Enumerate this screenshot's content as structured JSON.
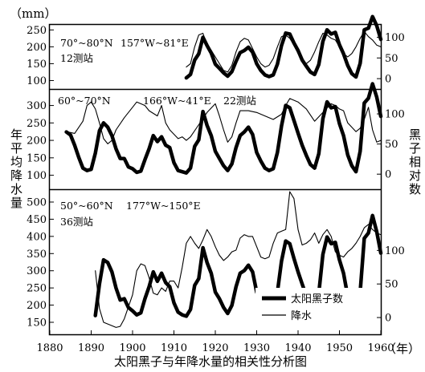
{
  "figure": {
    "unit_label": "（mm）",
    "left_axis_label": "年平均降水量",
    "right_axis_label": "黑子相对数",
    "x_unit": "（年）",
    "caption": "太阳黑子与年降水量的相关性分析图"
  },
  "legend": {
    "sunspot_label": "太阳黑子数",
    "rain_label": "降水"
  },
  "panels": [
    {
      "lat": "70°~80°N",
      "lon": "157°W~81°E",
      "stations": "12测站"
    },
    {
      "lat": "60°~70°N",
      "lon": "166°W~41°E",
      "stations": "22测站"
    },
    {
      "lat": "50°~60°N",
      "lon": "177°W~150°E",
      "stations": "36测站"
    }
  ],
  "chart_data": [
    {
      "type": "line",
      "title": "70°~80°N 157°W~81°E 12测站",
      "xlabel": "（年）",
      "ylabel": "年平均降水量 (mm)",
      "y2label": "黑子相对数",
      "xlim": [
        1880,
        1960
      ],
      "ylim": [
        75,
        265
      ],
      "yticks": [
        100,
        150,
        200,
        250
      ],
      "y2lim": [
        -25,
        130
      ],
      "y2ticks": [
        0,
        50,
        100
      ],
      "xticks": [
        1880,
        1890,
        1900,
        1910,
        1920,
        1930,
        1940,
        1950,
        1960
      ],
      "grid": false,
      "series": [
        {
          "name": "太阳黑子数",
          "axis": "right",
          "style": "thick",
          "x": [
            1913,
            1914,
            1915,
            1916,
            1917,
            1918,
            1919,
            1920,
            1921,
            1922,
            1923,
            1924,
            1925,
            1926,
            1927,
            1928,
            1929,
            1930,
            1931,
            1932,
            1933,
            1934,
            1935,
            1936,
            1937,
            1938,
            1939,
            1940,
            1941,
            1942,
            1943,
            1944,
            1945,
            1946,
            1947,
            1948,
            1949,
            1950,
            1951,
            1952,
            1953,
            1954,
            1955,
            1956,
            1957,
            1958,
            1959,
            1960
          ],
          "y": [
            2,
            10,
            45,
            60,
            100,
            80,
            62,
            35,
            25,
            14,
            6,
            17,
            42,
            63,
            68,
            76,
            64,
            36,
            20,
            9,
            5,
            9,
            35,
            80,
            110,
            108,
            86,
            68,
            45,
            30,
            16,
            10,
            34,
            90,
            118,
            108,
            112,
            82,
            60,
            32,
            12,
            4,
            37,
            118,
            122,
            150,
            128,
            95
          ]
        },
        {
          "name": "降水",
          "axis": "left",
          "style": "thin",
          "x": [
            1913,
            1914,
            1915,
            1916,
            1917,
            1918,
            1919,
            1920,
            1921,
            1922,
            1923,
            1924,
            1925,
            1926,
            1927,
            1928,
            1929,
            1930,
            1931,
            1932,
            1933,
            1934,
            1935,
            1936,
            1937,
            1938,
            1939,
            1940,
            1941,
            1942,
            1943,
            1944,
            1945,
            1946,
            1947,
            1948,
            1949,
            1950,
            1951,
            1952,
            1953,
            1954,
            1955,
            1956,
            1957,
            1958,
            1959,
            1960
          ],
          "y": [
            140,
            150,
            200,
            235,
            240,
            205,
            190,
            170,
            150,
            130,
            125,
            145,
            185,
            215,
            225,
            220,
            195,
            170,
            150,
            140,
            145,
            165,
            200,
            230,
            235,
            225,
            205,
            180,
            160,
            150,
            160,
            185,
            215,
            240,
            235,
            225,
            220,
            200,
            180,
            170,
            180,
            200,
            225,
            245,
            230,
            220,
            205,
            200
          ]
        }
      ]
    },
    {
      "type": "line",
      "title": "60°~70°N 166°W~41°E 22测站",
      "xlabel": "（年）",
      "ylabel": "年平均降水量 (mm)",
      "y2label": "黑子相对数",
      "xlim": [
        1880,
        1960
      ],
      "ylim": [
        60,
        345
      ],
      "yticks": [
        100,
        150,
        200,
        250,
        300
      ],
      "y2lim": [
        -25,
        140
      ],
      "y2ticks": [
        0,
        50,
        100
      ],
      "xticks": [
        1880,
        1890,
        1900,
        1910,
        1920,
        1930,
        1940,
        1950,
        1960
      ],
      "grid": false,
      "series": [
        {
          "name": "太阳黑子数",
          "axis": "right",
          "style": "thick",
          "x": [
            1884,
            1885,
            1886,
            1887,
            1888,
            1889,
            1890,
            1891,
            1892,
            1893,
            1894,
            1895,
            1896,
            1897,
            1898,
            1899,
            1900,
            1901,
            1902,
            1903,
            1904,
            1905,
            1906,
            1907,
            1908,
            1909,
            1910,
            1911,
            1912,
            1913,
            1914,
            1915,
            1916,
            1917,
            1918,
            1919,
            1920,
            1921,
            1922,
            1923,
            1924,
            1925,
            1926,
            1927,
            1928,
            1929,
            1930,
            1931,
            1932,
            1933,
            1934,
            1935,
            1936,
            1937,
            1938,
            1939,
            1940,
            1941,
            1942,
            1943,
            1944,
            1945,
            1946,
            1947,
            1948,
            1949,
            1950,
            1951,
            1952,
            1953,
            1954,
            1955,
            1956,
            1957,
            1958,
            1959,
            1960
          ],
          "y": [
            70,
            65,
            48,
            28,
            10,
            6,
            8,
            35,
            72,
            85,
            78,
            64,
            42,
            26,
            26,
            12,
            9,
            3,
            5,
            24,
            42,
            64,
            54,
            62,
            48,
            44,
            19,
            6,
            4,
            2,
            10,
            46,
            57,
            104,
            81,
            64,
            38,
            26,
            14,
            6,
            17,
            44,
            64,
            70,
            78,
            66,
            36,
            22,
            10,
            6,
            9,
            36,
            80,
            114,
            110,
            89,
            68,
            48,
            31,
            16,
            10,
            34,
            92,
            120,
            110,
            112,
            84,
            64,
            32,
            14,
            4,
            38,
            118,
            126,
            150,
            128,
            96
          ]
        },
        {
          "name": "降水",
          "axis": "left",
          "style": "thin",
          "x": [
            1884,
            1886,
            1888,
            1889,
            1890,
            1891,
            1892,
            1893,
            1894,
            1895,
            1896,
            1898,
            1900,
            1901,
            1902,
            1903,
            1904,
            1906,
            1907,
            1908,
            1909,
            1911,
            1912,
            1913,
            1914,
            1916,
            1918,
            1920,
            1921,
            1922,
            1923,
            1924,
            1925,
            1926,
            1928,
            1930,
            1932,
            1934,
            1936,
            1937,
            1938,
            1940,
            1942,
            1944,
            1946,
            1948,
            1949,
            1950,
            1951,
            1952,
            1954,
            1955,
            1956,
            1957,
            1958,
            1959,
            1960
          ],
          "y": [
            225,
            220,
            255,
            300,
            310,
            290,
            250,
            205,
            190,
            200,
            230,
            265,
            295,
            310,
            305,
            300,
            285,
            270,
            300,
            250,
            230,
            205,
            210,
            200,
            210,
            245,
            280,
            305,
            270,
            230,
            195,
            210,
            250,
            285,
            285,
            280,
            270,
            260,
            275,
            300,
            320,
            310,
            290,
            255,
            280,
            305,
            300,
            290,
            285,
            250,
            225,
            235,
            260,
            295,
            230,
            195,
            200
          ]
        }
      ]
    },
    {
      "type": "line",
      "title": "50°~60°N 177°W~150°E 36测站",
      "xlabel": "（年）",
      "ylabel": "年平均降水量 (mm)",
      "y2label": "黑子相对数",
      "xlim": [
        1880,
        1960
      ],
      "ylim": [
        115,
        535
      ],
      "yticks": [
        150,
        200,
        250,
        300,
        350,
        400,
        450,
        500
      ],
      "y2lim": [
        -25,
        190
      ],
      "y2ticks": [
        0,
        50,
        100
      ],
      "xticks": [
        1880,
        1890,
        1900,
        1910,
        1920,
        1930,
        1940,
        1950,
        1960
      ],
      "grid": false,
      "series": [
        {
          "name": "太阳黑子数",
          "axis": "right",
          "style": "thick",
          "x": [
            1891,
            1892,
            1893,
            1894,
            1895,
            1896,
            1897,
            1898,
            1899,
            1900,
            1901,
            1902,
            1903,
            1904,
            1905,
            1906,
            1907,
            1908,
            1909,
            1910,
            1911,
            1912,
            1913,
            1914,
            1915,
            1916,
            1917,
            1918,
            1919,
            1920,
            1921,
            1922,
            1923,
            1924,
            1925,
            1926,
            1927,
            1928,
            1929,
            1930,
            1931,
            1932,
            1933,
            1934,
            1935,
            1936,
            1937,
            1938,
            1939,
            1940,
            1941,
            1942,
            1943,
            1944,
            1945,
            1946,
            1947,
            1948,
            1949,
            1950,
            1951,
            1952,
            1953,
            1954,
            1955,
            1956,
            1957,
            1958,
            1959,
            1960
          ],
          "y": [
            3,
            50,
            86,
            82,
            68,
            44,
            26,
            28,
            15,
            10,
            4,
            7,
            28,
            46,
            68,
            54,
            66,
            52,
            46,
            22,
            8,
            4,
            2,
            12,
            48,
            58,
            104,
            82,
            66,
            38,
            28,
            15,
            6,
            18,
            46,
            66,
            70,
            78,
            68,
            38,
            24,
            12,
            6,
            10,
            38,
            84,
            114,
            110,
            88,
            68,
            50,
            32,
            18,
            10,
            36,
            94,
            120,
            110,
            112,
            86,
            66,
            32,
            16,
            4,
            38,
            118,
            126,
            152,
            128,
            96
          ]
        },
        {
          "name": "降水",
          "axis": "left",
          "style": "thin",
          "x": [
            1891,
            1892,
            1893,
            1894,
            1895,
            1896,
            1897,
            1898,
            1900,
            1901,
            1902,
            1903,
            1904,
            1905,
            1906,
            1907,
            1908,
            1909,
            1910,
            1911,
            1912,
            1913,
            1914,
            1915,
            1916,
            1917,
            1918,
            1919,
            1920,
            1921,
            1922,
            1923,
            1924,
            1925,
            1926,
            1927,
            1928,
            1929,
            1930,
            1931,
            1932,
            1933,
            1934,
            1935,
            1936,
            1937,
            1938,
            1939,
            1940,
            1941,
            1942,
            1943,
            1944,
            1945,
            1946,
            1947,
            1948,
            1949,
            1950,
            1951,
            1952,
            1953,
            1954,
            1955,
            1956,
            1957,
            1958,
            1959,
            1960
          ],
          "y": [
            300,
            190,
            150,
            145,
            140,
            135,
            138,
            160,
            230,
            300,
            320,
            315,
            280,
            235,
            230,
            250,
            240,
            270,
            270,
            250,
            310,
            380,
            400,
            380,
            365,
            390,
            420,
            400,
            370,
            345,
            330,
            340,
            355,
            360,
            395,
            405,
            400,
            400,
            370,
            340,
            335,
            340,
            380,
            410,
            415,
            420,
            530,
            510,
            420,
            375,
            380,
            390,
            410,
            380,
            405,
            420,
            400,
            355,
            345,
            340,
            355,
            365,
            380,
            400,
            425,
            435,
            420,
            410,
            405
          ]
        }
      ]
    }
  ]
}
